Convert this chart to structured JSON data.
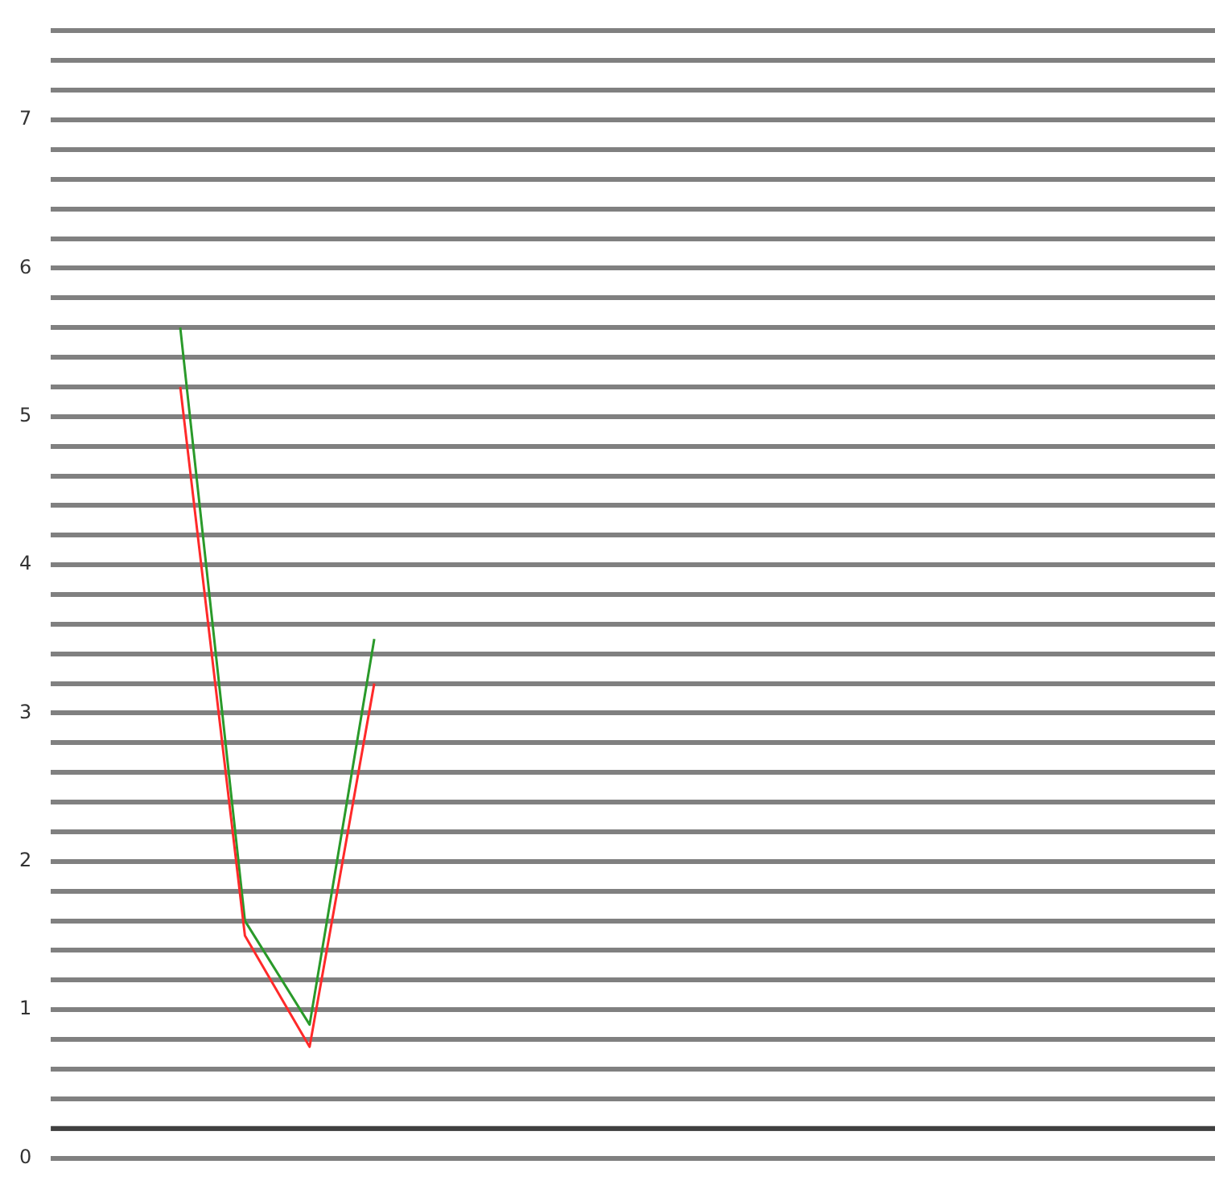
{
  "chart_data": {
    "type": "line",
    "categories": [
      null,
      null,
      null,
      null,
      null,
      null,
      null,
      null,
      null,
      null,
      null,
      null,
      null,
      null,
      null,
      null,
      null,
      null,
      null
    ],
    "series": [
      {
        "color": "#ff2a2a",
        "values": [
          null,
          null,
          5.2,
          1.5,
          0.75,
          3.2,
          null,
          null,
          null,
          null,
          null,
          null,
          null,
          null,
          null,
          null,
          null,
          null,
          null
        ]
      },
      {
        "color": "#2a9a2a",
        "values": [
          null,
          null,
          5.6,
          1.6,
          0.9,
          3.5,
          null,
          null,
          null,
          null,
          null,
          null,
          null,
          null,
          null,
          null,
          null,
          null,
          null
        ]
      }
    ],
    "ylim": [
      0,
      7.6
    ],
    "yticks": [
      0,
      {
        "value": 0.2,
        "label": null
      },
      {
        "value": 0.4,
        "label": null
      },
      {
        "value": 0.6,
        "label": null
      },
      {
        "value": 0.8,
        "label": null
      },
      1,
      {
        "value": 1.2,
        "label": null
      },
      {
        "value": 1.4,
        "label": null
      },
      {
        "value": 1.6,
        "label": null
      },
      {
        "value": 1.8,
        "label": null
      },
      2,
      {
        "value": 2.2,
        "label": null
      },
      {
        "value": 2.4,
        "label": null
      },
      {
        "value": 2.6,
        "label": null
      },
      {
        "value": 2.8,
        "label": null
      },
      3,
      {
        "value": 3.2,
        "label": null
      },
      {
        "value": 3.4,
        "label": null
      },
      {
        "value": 3.6,
        "label": null
      },
      {
        "value": 3.8,
        "label": null
      },
      4,
      {
        "value": 4.2,
        "label": null
      },
      {
        "value": 4.4,
        "label": null
      },
      {
        "value": 4.6,
        "label": null
      },
      {
        "value": 4.8,
        "label": null
      },
      5,
      {
        "value": 5.2,
        "label": null
      },
      {
        "value": 5.4,
        "label": null
      },
      {
        "value": 5.6,
        "label": null
      },
      {
        "value": 5.8,
        "label": null
      },
      6,
      {
        "value": 6.2,
        "label": null
      },
      {
        "value": 6.4,
        "label": null
      },
      {
        "value": 6.6,
        "label": null
      },
      {
        "value": 6.8,
        "label": null
      },
      7,
      {
        "value": 7.2,
        "label": null
      },
      {
        "value": 7.4,
        "label": null
      },
      {
        "value": 7.6,
        "label": null
      }
    ],
    "ref_lines": [
      {
        "axis": "y",
        "value": 0.2,
        "color": "#404040"
      }
    ],
    "grid": "y",
    "tick_labels": "y",
    "legend": false,
    "marker": "none",
    "line_style": "solid"
  }
}
